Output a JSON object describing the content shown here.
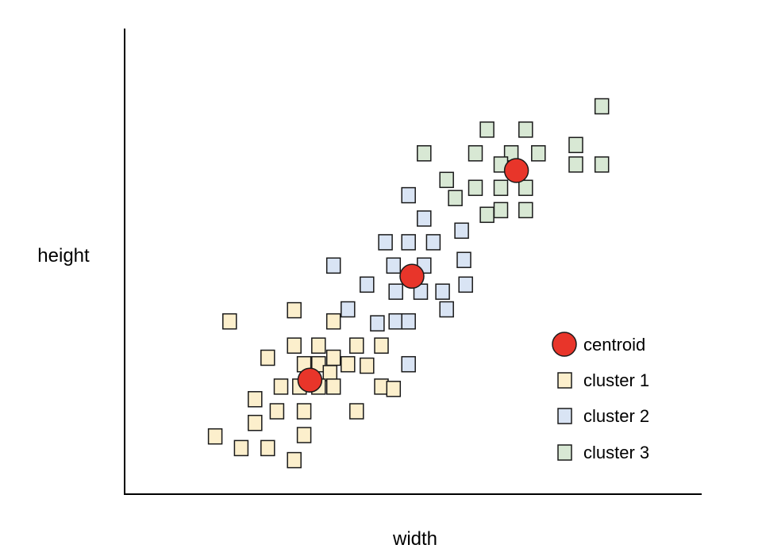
{
  "chart_data": {
    "type": "scatter",
    "title": "",
    "xlabel": "width",
    "ylabel": "height",
    "xlim": [
      0,
      100
    ],
    "ylim": [
      0,
      100
    ],
    "grid": false,
    "legend_position": "bottom-right",
    "legend": [
      "centroid",
      "cluster 1",
      "cluster 2",
      "cluster 3"
    ],
    "colors": {
      "cluster1": "#fcefcc",
      "cluster2": "#d9e4f4",
      "cluster3": "#d8e8d4",
      "centroid": "#e8352a",
      "stroke": "#1a1a1a"
    },
    "series": [
      {
        "name": "cluster 1",
        "points": [
          [
            18.2,
            37.1
          ],
          [
            29.4,
            39.5
          ],
          [
            36.2,
            37.1
          ],
          [
            24.8,
            29.3
          ],
          [
            29.4,
            31.9
          ],
          [
            33.6,
            31.9
          ],
          [
            36.2,
            29.3
          ],
          [
            40.2,
            31.9
          ],
          [
            44.5,
            31.9
          ],
          [
            31.1,
            27.9
          ],
          [
            33.6,
            27.9
          ],
          [
            35.6,
            26.0
          ],
          [
            38.7,
            27.9
          ],
          [
            42.0,
            27.6
          ],
          [
            27.1,
            23.1
          ],
          [
            30.3,
            23.1
          ],
          [
            33.6,
            23.1
          ],
          [
            36.2,
            23.1
          ],
          [
            44.5,
            23.1
          ],
          [
            46.6,
            22.6
          ],
          [
            22.6,
            20.4
          ],
          [
            26.4,
            17.8
          ],
          [
            31.1,
            17.8
          ],
          [
            40.2,
            17.8
          ],
          [
            22.6,
            15.3
          ],
          [
            31.1,
            12.7
          ],
          [
            15.7,
            12.4
          ],
          [
            20.2,
            9.9
          ],
          [
            24.8,
            9.9
          ],
          [
            29.4,
            7.3
          ]
        ]
      },
      {
        "name": "cluster 2",
        "points": [
          [
            49.2,
            64.2
          ],
          [
            51.9,
            59.2
          ],
          [
            45.2,
            54.1
          ],
          [
            49.2,
            54.1
          ],
          [
            53.5,
            54.1
          ],
          [
            58.4,
            56.6
          ],
          [
            36.2,
            49.1
          ],
          [
            46.6,
            49.1
          ],
          [
            51.9,
            49.1
          ],
          [
            58.8,
            50.3
          ],
          [
            42.0,
            45.0
          ],
          [
            47.0,
            43.5
          ],
          [
            51.3,
            43.5
          ],
          [
            55.1,
            43.5
          ],
          [
            59.1,
            45.0
          ],
          [
            38.7,
            39.7
          ],
          [
            55.8,
            39.7
          ],
          [
            43.8,
            36.7
          ],
          [
            47.0,
            37.1
          ],
          [
            49.2,
            37.1
          ],
          [
            49.2,
            27.9
          ]
        ]
      },
      {
        "name": "cluster 3",
        "points": [
          [
            82.7,
            83.3
          ],
          [
            62.8,
            78.3
          ],
          [
            69.5,
            78.3
          ],
          [
            51.9,
            73.2
          ],
          [
            60.8,
            73.2
          ],
          [
            67.0,
            73.2
          ],
          [
            71.7,
            73.2
          ],
          [
            78.2,
            75.0
          ],
          [
            65.2,
            70.8
          ],
          [
            78.2,
            70.8
          ],
          [
            82.7,
            70.8
          ],
          [
            55.8,
            67.5
          ],
          [
            60.8,
            65.8
          ],
          [
            65.2,
            65.8
          ],
          [
            69.5,
            65.8
          ],
          [
            57.3,
            63.6
          ],
          [
            62.8,
            60.0
          ],
          [
            65.2,
            61.0
          ],
          [
            69.5,
            61.0
          ]
        ]
      }
    ],
    "centroids": [
      [
        32.1,
        24.5
      ],
      [
        49.8,
        46.8
      ],
      [
        67.9,
        69.5
      ]
    ]
  }
}
